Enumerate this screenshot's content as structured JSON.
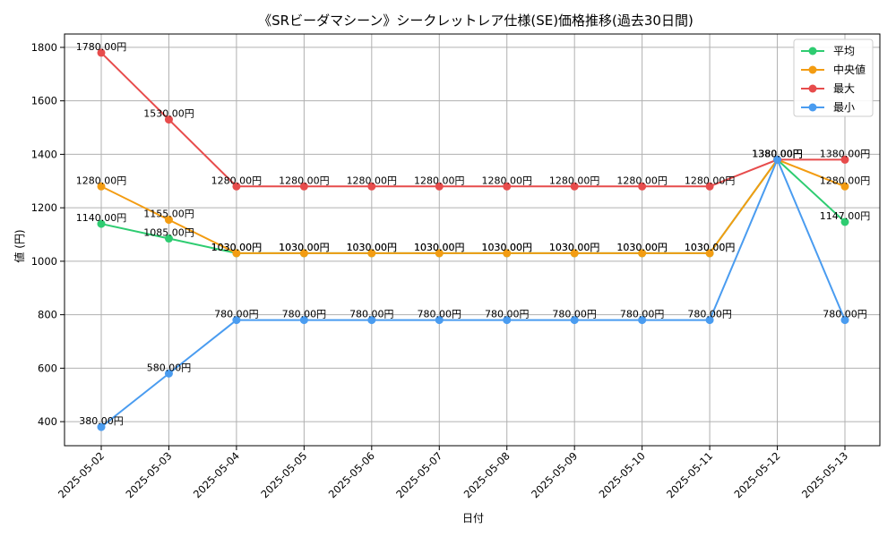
{
  "chart_data": {
    "type": "line",
    "title": "《SRビーダマシーン》シークレットレア仕様(SE)価格推移(過去30日間)",
    "xlabel": "日付",
    "ylabel": "値 (円)",
    "ylim": [
      310,
      1850
    ],
    "yticks": [
      400,
      600,
      800,
      1000,
      1200,
      1400,
      1600,
      1800
    ],
    "grid": true,
    "legend_position": "top-right",
    "categories": [
      "2025-05-02",
      "2025-05-03",
      "2025-05-04",
      "2025-05-05",
      "2025-05-06",
      "2025-05-07",
      "2025-05-08",
      "2025-05-09",
      "2025-05-10",
      "2025-05-11",
      "2025-05-12",
      "2025-05-13"
    ],
    "series": [
      {
        "name": "平均",
        "color": "#2ecc71",
        "values": [
          1140,
          1085,
          1030,
          1030,
          1030,
          1030,
          1030,
          1030,
          1030,
          1030,
          1380,
          1147
        ],
        "labels": [
          "1140.00円",
          "1085.00円",
          "1030.00円",
          "1030.00円",
          "1030.00円",
          "1030.00円",
          "1030.00円",
          "1030.00円",
          "1030.00円",
          "1030.00円",
          "1380.00円",
          "1147.00円"
        ]
      },
      {
        "name": "中央値",
        "color": "#f39c12",
        "values": [
          1280,
          1155,
          1030,
          1030,
          1030,
          1030,
          1030,
          1030,
          1030,
          1030,
          1380,
          1280
        ],
        "labels": [
          "1280.00円",
          "1155.00円",
          "1030.00円",
          "1030.00円",
          "1030.00円",
          "1030.00円",
          "1030.00円",
          "1030.00円",
          "1030.00円",
          "1030.00円",
          "1380.00円",
          "1280.00円"
        ]
      },
      {
        "name": "最大",
        "color": "#e74c4c",
        "values": [
          1780,
          1530,
          1280,
          1280,
          1280,
          1280,
          1280,
          1280,
          1280,
          1280,
          1380,
          1380
        ],
        "labels": [
          "1780.00円",
          "1530.00円",
          "1280.00円",
          "1280.00円",
          "1280.00円",
          "1280.00円",
          "1280.00円",
          "1280.00円",
          "1280.00円",
          "1280.00円",
          "1380.00円",
          "1380.00円"
        ]
      },
      {
        "name": "最小",
        "color": "#4a9cf0",
        "values": [
          380,
          580,
          780,
          780,
          780,
          780,
          780,
          780,
          780,
          780,
          1380,
          780
        ],
        "labels": [
          "380.00円",
          "580.00円",
          "780.00円",
          "780.00円",
          "780.00円",
          "780.00円",
          "780.00円",
          "780.00円",
          "780.00円",
          "780.00円",
          "1380.00円",
          "780.00円"
        ]
      }
    ]
  }
}
